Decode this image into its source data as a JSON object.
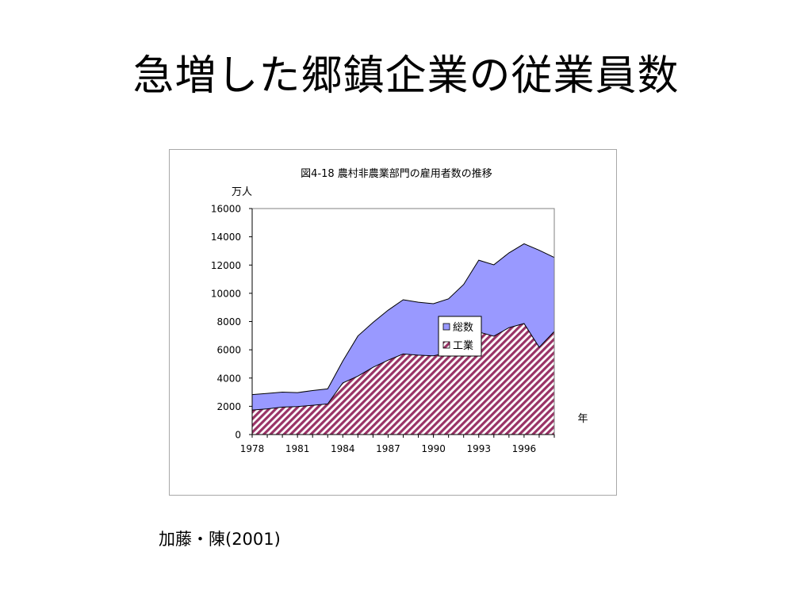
{
  "slide": {
    "title": "急増した郷鎮企業の従業員数",
    "source": "加藤・陳(2001)"
  },
  "chart_data": {
    "type": "area",
    "title": "図4-18  農村非農業部門の雇用者数の推移",
    "ylabel": "万人",
    "xlabel": "年",
    "ylim": [
      0,
      16000
    ],
    "yticks": [
      0,
      2000,
      4000,
      6000,
      8000,
      10000,
      12000,
      14000,
      16000
    ],
    "xtick_labels": [
      "1978",
      "1981",
      "1984",
      "1987",
      "1990",
      "1993",
      "1996"
    ],
    "x": [
      1978,
      1979,
      1980,
      1981,
      1982,
      1983,
      1984,
      1985,
      1986,
      1987,
      1988,
      1989,
      1990,
      1991,
      1992,
      1993,
      1994,
      1995,
      1996,
      1997,
      1998
    ],
    "series": [
      {
        "name": "総数",
        "color": "#9999ff",
        "values": [
          2827,
          2909,
          3000,
          2970,
          3113,
          3235,
          5208,
          6979,
          7937,
          8805,
          9545,
          9367,
          9265,
          9609,
          10625,
          12345,
          12017,
          12862,
          13508,
          13050,
          12537
        ]
      },
      {
        "name": "工業",
        "color": "#993366",
        "pattern": "diagonal-hatch",
        "values": [
          1734,
          1816,
          1942,
          1981,
          2073,
          2168,
          3656,
          4137,
          4762,
          5267,
          5703,
          5624,
          5572,
          5814,
          6336,
          7260,
          6962,
          7565,
          7860,
          6180,
          7300
        ]
      }
    ],
    "legend_position": "center-right",
    "grid": false
  }
}
